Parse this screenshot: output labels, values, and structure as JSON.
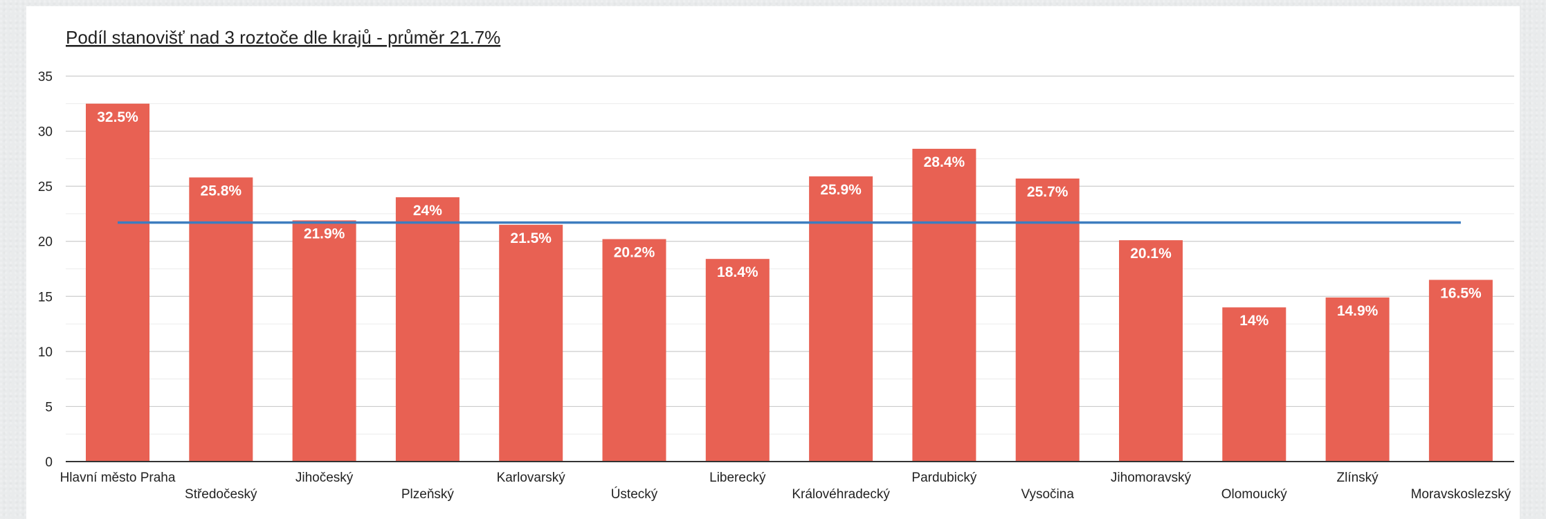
{
  "chart_data": {
    "type": "bar",
    "title": "Podíl stanovišť nad 3 roztoče dle krajů - průměr 21.7%",
    "categories": [
      "Hlavní město Praha",
      "Středočeský",
      "Jihočeský",
      "Plzeňský",
      "Karlovarský",
      "Ústecký",
      "Liberecký",
      "Královéhradecký",
      "Pardubický",
      "Vysočina",
      "Jihomoravský",
      "Olomoucký",
      "Zlínský",
      "Moravskoslezský"
    ],
    "values": [
      32.5,
      25.8,
      21.9,
      24,
      21.5,
      20.2,
      18.4,
      25.9,
      28.4,
      25.7,
      20.1,
      14,
      14.9,
      16.5
    ],
    "data_labels": [
      "32.5%",
      "25.8%",
      "21.9%",
      "24%",
      "21.5%",
      "20.2%",
      "18.4%",
      "25.9%",
      "28.4%",
      "25.7%",
      "20.1%",
      "14%",
      "14.9%",
      "16.5%"
    ],
    "reference_line": {
      "value": 21.7
    },
    "ylim": [
      0,
      35
    ],
    "yticks": [
      0,
      5,
      10,
      15,
      20,
      25,
      30,
      35
    ],
    "xlabel": "",
    "ylabel": "",
    "grid": true,
    "legend": "none",
    "colors": {
      "bar": "#e86153",
      "reference_line": "#3d7dbf",
      "gridline": "#cccccc",
      "minor_gridline": "#ececec",
      "axis": "#333333"
    }
  }
}
